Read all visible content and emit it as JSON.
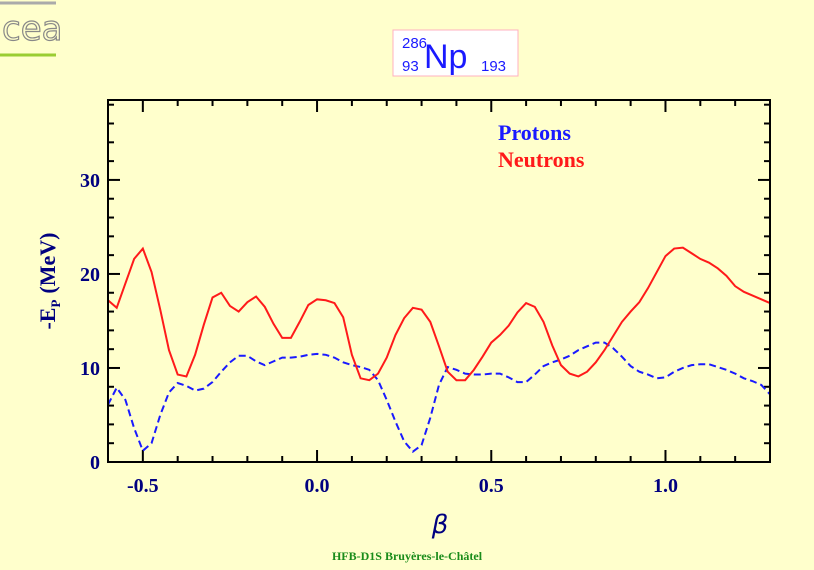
{
  "logo": "cea",
  "footer": "HFB-D1S Bruyères-le-Châtel",
  "chart_data": {
    "type": "line",
    "title": {
      "mass": "286",
      "charge": "93",
      "symbol": "Np",
      "neutrons": "193"
    },
    "xlabel": "β",
    "ylabel": {
      "main": "-E",
      "sub": "P",
      "unit": "(MeV)"
    },
    "xlim": [
      -0.6,
      1.3
    ],
    "ylim": [
      0,
      38.5
    ],
    "xticks": [
      -0.5,
      {
        "value": 0,
        "label": "0.0"
      },
      0.5,
      {
        "value": 1,
        "label": "1.0"
      }
    ],
    "yticks": [
      0,
      10,
      20,
      30
    ],
    "xminorticks": [
      -0.4,
      -0.3,
      -0.2,
      -0.1,
      0.1,
      0.2,
      0.3,
      0.4,
      0.6,
      0.7,
      0.8,
      0.9,
      1.1,
      1.2
    ],
    "yminorticks": [
      2,
      4,
      6,
      8,
      12,
      14,
      16,
      18,
      22,
      24,
      26,
      28,
      32,
      34,
      36,
      38
    ],
    "legend": "upper right",
    "x": [
      -0.6,
      -0.575,
      -0.55,
      -0.525,
      -0.5,
      -0.475,
      -0.45,
      -0.425,
      -0.4,
      -0.375,
      -0.35,
      -0.325,
      -0.3,
      -0.275,
      -0.25,
      -0.225,
      -0.2,
      -0.175,
      -0.15,
      -0.125,
      -0.1,
      -0.075,
      -0.05,
      -0.025,
      0.0,
      0.025,
      0.05,
      0.075,
      0.1,
      0.125,
      0.15,
      0.175,
      0.2,
      0.225,
      0.25,
      0.275,
      0.3,
      0.325,
      0.35,
      0.375,
      0.4,
      0.425,
      0.45,
      0.475,
      0.5,
      0.525,
      0.55,
      0.575,
      0.6,
      0.625,
      0.65,
      0.675,
      0.7,
      0.725,
      0.75,
      0.775,
      0.8,
      0.825,
      0.85,
      0.875,
      0.9,
      0.925,
      0.95,
      0.975,
      1.0,
      1.025,
      1.05,
      1.075,
      1.1,
      1.125,
      1.15,
      1.175,
      1.2,
      1.225,
      1.25,
      1.275,
      1.3
    ],
    "series": [
      {
        "name": "Protons",
        "color": "#1a1aff",
        "dash": true,
        "values": [
          6.1,
          7.9,
          6.6,
          3.6,
          1.2,
          2.0,
          5.0,
          7.4,
          8.4,
          8.1,
          7.6,
          7.8,
          8.5,
          9.6,
          10.6,
          11.3,
          11.3,
          10.7,
          10.3,
          10.7,
          11.1,
          11.1,
          11.2,
          11.4,
          11.5,
          11.4,
          11.1,
          10.6,
          10.3,
          10.1,
          9.8,
          8.7,
          6.6,
          4.3,
          2.2,
          1.1,
          1.8,
          4.7,
          8.2,
          10.1,
          9.8,
          9.4,
          9.3,
          9.3,
          9.4,
          9.4,
          9.0,
          8.5,
          8.5,
          9.3,
          10.2,
          10.6,
          10.9,
          11.3,
          11.9,
          12.3,
          12.7,
          12.7,
          12.1,
          11.2,
          10.2,
          9.6,
          9.3,
          8.9,
          9.0,
          9.6,
          10.0,
          10.3,
          10.4,
          10.4,
          10.1,
          9.8,
          9.4,
          8.9,
          8.6,
          8.2,
          7.2
        ]
      },
      {
        "name": "Neutrons",
        "color": "#ff1a1a",
        "dash": false,
        "values": [
          17.2,
          16.4,
          19.0,
          21.6,
          22.7,
          20.2,
          16.2,
          11.9,
          9.3,
          9.1,
          11.4,
          14.6,
          17.5,
          18.0,
          16.6,
          16.0,
          17.0,
          17.6,
          16.5,
          14.7,
          13.2,
          13.2,
          14.9,
          16.7,
          17.3,
          17.2,
          16.9,
          15.4,
          11.4,
          8.9,
          8.7,
          9.4,
          11.1,
          13.5,
          15.3,
          16.4,
          16.2,
          14.9,
          12.3,
          9.6,
          8.7,
          8.7,
          9.8,
          11.2,
          12.7,
          13.5,
          14.5,
          15.9,
          16.9,
          16.5,
          14.9,
          12.4,
          10.3,
          9.4,
          9.1,
          9.6,
          10.6,
          11.9,
          13.4,
          14.9,
          16.0,
          17.0,
          18.5,
          20.2,
          21.9,
          22.7,
          22.8,
          22.2,
          21.6,
          21.2,
          20.6,
          19.8,
          18.7,
          18.1,
          17.7,
          17.3,
          16.9
        ]
      }
    ]
  }
}
